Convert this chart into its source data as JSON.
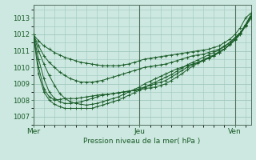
{
  "title": "",
  "xlabel": "Pression niveau de la mer( hPa )",
  "bg_color": "#cce8e0",
  "grid_color": "#a0c8be",
  "line_color": "#1a5c28",
  "marker_color": "#1a5c28",
  "ylim": [
    1006.5,
    1013.8
  ],
  "yticks": [
    1007,
    1008,
    1009,
    1010,
    1011,
    1012,
    1013
  ],
  "xtick_labels": [
    "Mer",
    "Jeu",
    "Ven"
  ],
  "xtick_positions": [
    0,
    20,
    38
  ],
  "vlines": [
    0,
    20,
    38
  ],
  "lines": [
    [
      1012.0,
      1011.6,
      1011.3,
      1011.1,
      1010.9,
      1010.75,
      1010.6,
      1010.5,
      1010.4,
      1010.3,
      1010.25,
      1010.2,
      1010.15,
      1010.1,
      1010.1,
      1010.1,
      1010.1,
      1010.15,
      1010.2,
      1010.3,
      1010.4,
      1010.5,
      1010.55,
      1010.6,
      1010.65,
      1010.7,
      1010.75,
      1010.8,
      1010.85,
      1010.9,
      1010.95,
      1011.0,
      1011.05,
      1011.1,
      1011.2,
      1011.3,
      1011.5,
      1011.7,
      1012.0,
      1012.4,
      1013.0,
      1013.3
    ],
    [
      1012.0,
      1011.3,
      1010.7,
      1010.3,
      1010.0,
      1009.7,
      1009.5,
      1009.3,
      1009.2,
      1009.1,
      1009.1,
      1009.1,
      1009.15,
      1009.2,
      1009.3,
      1009.4,
      1009.5,
      1009.6,
      1009.7,
      1009.8,
      1009.9,
      1010.0,
      1010.05,
      1010.1,
      1010.15,
      1010.2,
      1010.3,
      1010.4,
      1010.5,
      1010.6,
      1010.7,
      1010.75,
      1010.8,
      1010.9,
      1011.0,
      1011.1,
      1011.3,
      1011.5,
      1011.8,
      1012.1,
      1012.6,
      1013.1
    ],
    [
      1012.0,
      1011.0,
      1010.2,
      1009.5,
      1008.9,
      1008.4,
      1008.1,
      1007.9,
      1007.8,
      1007.75,
      1007.7,
      1007.75,
      1007.8,
      1007.9,
      1008.0,
      1008.1,
      1008.2,
      1008.35,
      1008.5,
      1008.65,
      1008.8,
      1009.0,
      1009.15,
      1009.3,
      1009.45,
      1009.6,
      1009.75,
      1009.9,
      1010.0,
      1010.1,
      1010.2,
      1010.3,
      1010.4,
      1010.55,
      1010.7,
      1010.9,
      1011.1,
      1011.4,
      1011.7,
      1012.1,
      1012.6,
      1013.2
    ],
    [
      1012.0,
      1010.5,
      1009.3,
      1008.5,
      1008.1,
      1007.9,
      1007.8,
      1007.8,
      1007.85,
      1007.9,
      1008.0,
      1008.1,
      1008.2,
      1008.3,
      1008.35,
      1008.4,
      1008.45,
      1008.5,
      1008.55,
      1008.6,
      1008.7,
      1008.8,
      1008.9,
      1009.0,
      1009.1,
      1009.2,
      1009.4,
      1009.6,
      1009.8,
      1010.0,
      1010.15,
      1010.3,
      1010.45,
      1010.6,
      1010.75,
      1010.95,
      1011.1,
      1011.4,
      1011.7,
      1012.05,
      1012.55,
      1013.05
    ],
    [
      1012.0,
      1010.0,
      1008.7,
      1008.2,
      1008.0,
      1008.05,
      1008.1,
      1008.1,
      1008.1,
      1008.15,
      1008.2,
      1008.25,
      1008.3,
      1008.35,
      1008.35,
      1008.4,
      1008.45,
      1008.5,
      1008.55,
      1008.6,
      1008.65,
      1008.7,
      1008.75,
      1008.8,
      1008.9,
      1009.0,
      1009.2,
      1009.4,
      1009.6,
      1009.85,
      1010.05,
      1010.25,
      1010.4,
      1010.55,
      1010.7,
      1010.9,
      1011.1,
      1011.35,
      1011.65,
      1012.0,
      1012.5,
      1012.95
    ],
    [
      1012.0,
      1009.6,
      1008.5,
      1008.0,
      1007.75,
      1007.6,
      1007.5,
      1007.5,
      1007.5,
      1007.5,
      1007.5,
      1007.5,
      1007.6,
      1007.7,
      1007.8,
      1007.9,
      1008.0,
      1008.15,
      1008.3,
      1008.45,
      1008.6,
      1008.8,
      1008.95,
      1009.1,
      1009.25,
      1009.4,
      1009.55,
      1009.75,
      1009.95,
      1010.15,
      1010.3,
      1010.45,
      1010.6,
      1010.75,
      1010.9,
      1011.05,
      1011.25,
      1011.5,
      1011.8,
      1012.1,
      1012.55,
      1013.05
    ]
  ]
}
